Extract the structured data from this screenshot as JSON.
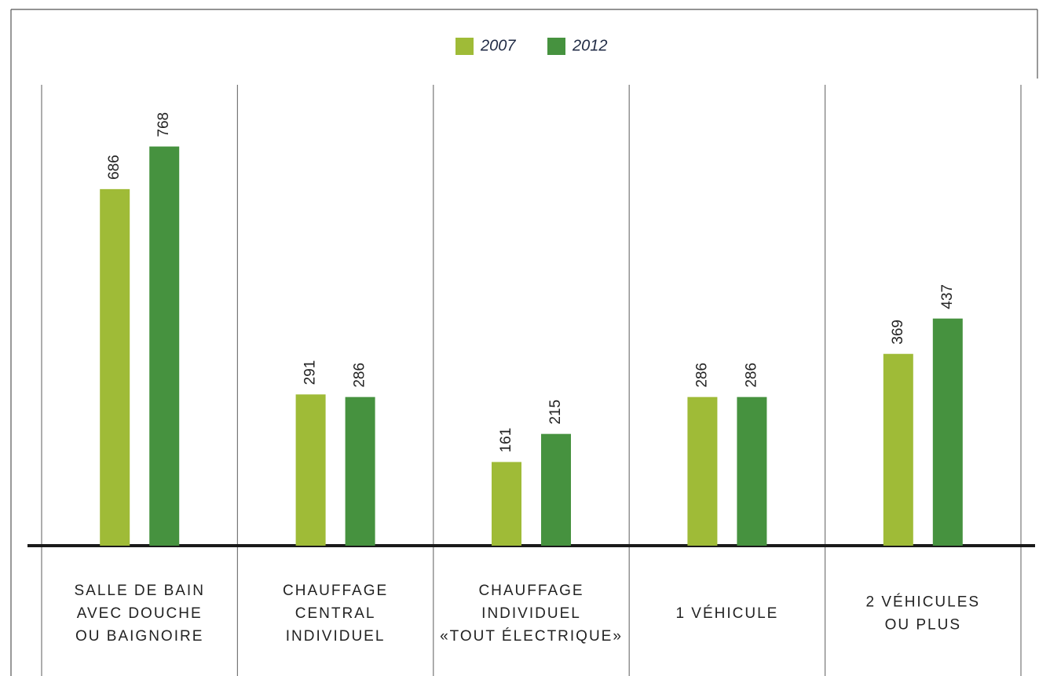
{
  "chart_data": {
    "type": "bar",
    "categories": [
      [
        "SALLE DE BAIN",
        "AVEC DOUCHE",
        "OU BAIGNOIRE"
      ],
      [
        "CHAUFFAGE",
        "CENTRAL",
        "INDIVIDUEL"
      ],
      [
        "CHAUFFAGE",
        "INDIVIDUEL",
        "«TOUT ÉLECTRIQUE»"
      ],
      [
        "1 VÉHICULE"
      ],
      [
        "2 VÉHICULES",
        "OU PLUS"
      ]
    ],
    "series": [
      {
        "name": "2007",
        "color": "#9fbb37",
        "values": [
          686,
          291,
          161,
          286,
          369
        ]
      },
      {
        "name": "2012",
        "color": "#46923f",
        "values": [
          768,
          286,
          215,
          286,
          437
        ]
      }
    ],
    "ylim": [
      0,
      1000
    ]
  }
}
